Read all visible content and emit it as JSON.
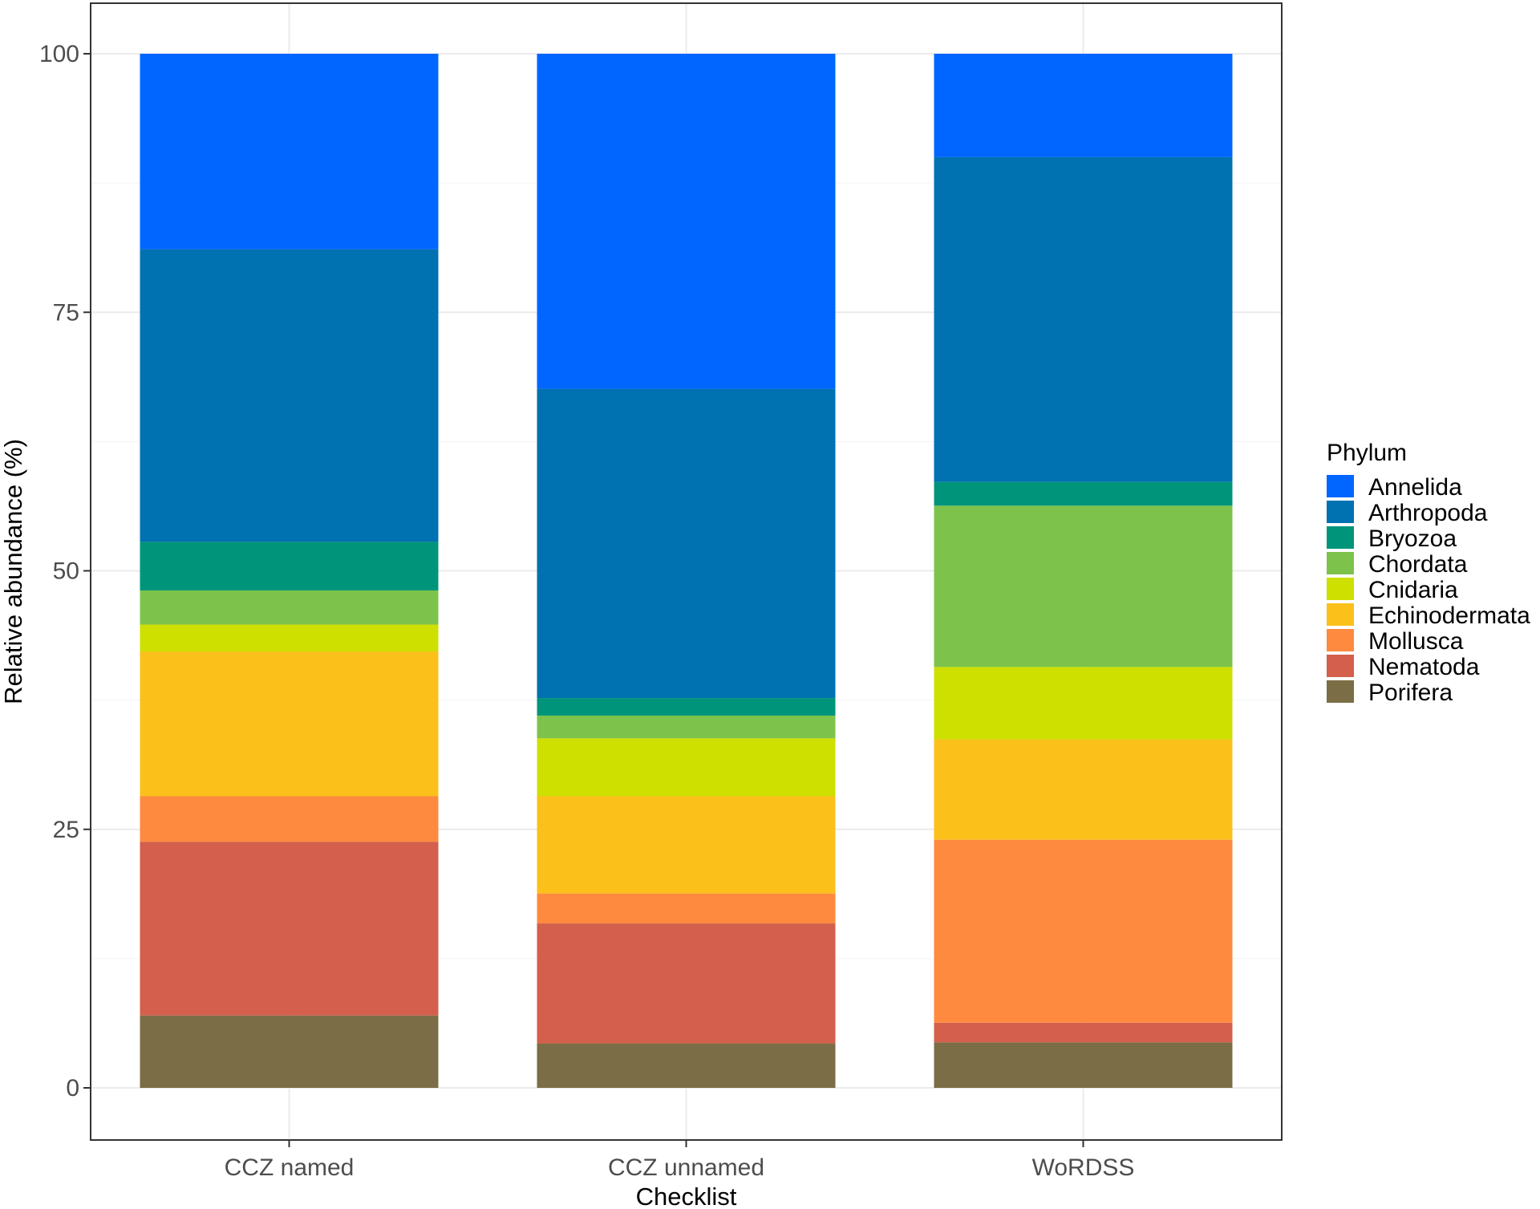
{
  "chart_data": {
    "type": "bar",
    "stacked": true,
    "title": "",
    "xlabel": "Checklist",
    "ylabel": "Relative abundance (%)",
    "ylim": [
      0,
      100
    ],
    "yticks": [
      0,
      25,
      50,
      75,
      100
    ],
    "grid": true,
    "legend": {
      "title": "Phylum",
      "position": "right"
    },
    "categories": [
      "CCZ named",
      "CCZ unnamed",
      "WoRDSS"
    ],
    "series": [
      {
        "name": "Porifera",
        "color": "#7b6d45",
        "values": [
          7.0,
          4.3,
          4.4
        ]
      },
      {
        "name": "Nematoda",
        "color": "#d35f4c",
        "values": [
          16.8,
          11.6,
          1.9
        ]
      },
      {
        "name": "Mollusca",
        "color": "#fd8a3f",
        "values": [
          4.4,
          2.9,
          17.7
        ]
      },
      {
        "name": "Echinodermata",
        "color": "#fcc01b",
        "values": [
          14.0,
          9.4,
          9.7
        ]
      },
      {
        "name": "Cnidaria",
        "color": "#cde000",
        "values": [
          2.6,
          5.6,
          7.0
        ]
      },
      {
        "name": "Chordata",
        "color": "#7dc34b",
        "values": [
          3.3,
          2.2,
          15.6
        ]
      },
      {
        "name": "Bryozoa",
        "color": "#00957a",
        "values": [
          4.7,
          1.7,
          2.3
        ]
      },
      {
        "name": "Arthropoda",
        "color": "#0071b1",
        "values": [
          28.3,
          29.9,
          31.4
        ]
      },
      {
        "name": "Annelida",
        "color": "#0066ff",
        "values": [
          18.9,
          32.4,
          10.0
        ]
      }
    ]
  }
}
